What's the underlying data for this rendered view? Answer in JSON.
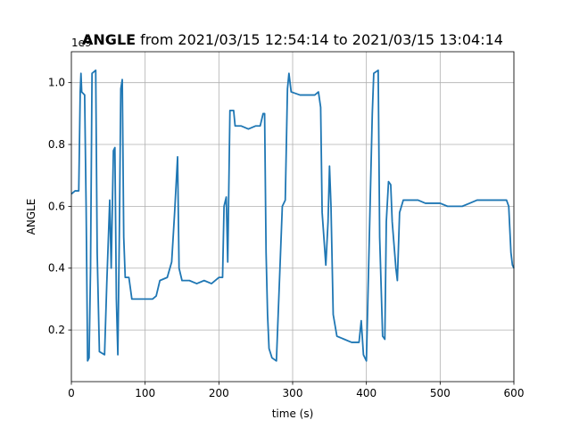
{
  "chart_data": {
    "type": "line",
    "title_bold": "ANGLE",
    "title": "from 2021/03/15 12:54:14 to 2021/03/15 13:04:14",
    "xlabel": "time (s)",
    "ylabel": "ANGLE",
    "offset_label": "1e9",
    "xlim": [
      0,
      600
    ],
    "ylim": [
      0.033,
      1.1
    ],
    "xticks": [
      0,
      100,
      200,
      300,
      400,
      500,
      600
    ],
    "yticks": [
      0.2,
      0.4,
      0.6,
      0.8,
      {
        "value": 1.0,
        "label": "1.0"
      }
    ],
    "grid": true,
    "x": [
      0,
      5,
      10,
      12,
      13,
      14,
      18,
      20,
      22,
      24,
      26,
      28,
      33,
      35,
      38,
      45,
      48,
      52,
      54,
      57,
      59,
      61,
      63,
      65,
      67,
      69,
      71,
      73,
      78,
      82,
      90,
      100,
      110,
      115,
      120,
      130,
      136,
      140,
      144,
      146,
      150,
      160,
      170,
      180,
      190,
      200,
      205,
      207,
      210,
      212,
      215,
      220,
      222,
      230,
      240,
      250,
      256,
      260,
      262,
      264,
      266,
      268,
      272,
      278,
      282,
      286,
      290,
      293,
      295,
      298,
      310,
      320,
      330,
      335,
      338,
      340,
      345,
      348,
      350,
      352,
      355,
      360,
      370,
      380,
      390,
      393,
      396,
      400,
      404,
      408,
      410,
      416,
      418,
      422,
      425,
      427,
      430,
      433,
      435,
      440,
      442,
      445,
      450,
      460,
      470,
      480,
      490,
      500,
      510,
      520,
      530,
      540,
      550,
      560,
      570,
      580,
      590,
      593,
      596,
      598,
      600
    ],
    "series": [
      {
        "name": "ANGLE",
        "color": "#1f77b4",
        "values": [
          0.64,
          0.65,
          0.65,
          0.97,
          1.03,
          0.97,
          0.96,
          0.6,
          0.1,
          0.11,
          0.4,
          1.03,
          1.04,
          0.45,
          0.13,
          0.12,
          0.35,
          0.62,
          0.4,
          0.78,
          0.79,
          0.3,
          0.12,
          0.5,
          0.98,
          1.01,
          0.5,
          0.37,
          0.37,
          0.3,
          0.3,
          0.3,
          0.3,
          0.31,
          0.36,
          0.37,
          0.42,
          0.58,
          0.76,
          0.4,
          0.36,
          0.36,
          0.35,
          0.36,
          0.35,
          0.37,
          0.37,
          0.6,
          0.63,
          0.42,
          0.91,
          0.91,
          0.86,
          0.86,
          0.85,
          0.86,
          0.86,
          0.9,
          0.9,
          0.45,
          0.25,
          0.14,
          0.11,
          0.1,
          0.35,
          0.6,
          0.62,
          0.98,
          1.03,
          0.97,
          0.96,
          0.96,
          0.96,
          0.97,
          0.92,
          0.58,
          0.41,
          0.55,
          0.73,
          0.6,
          0.25,
          0.18,
          0.17,
          0.16,
          0.16,
          0.23,
          0.12,
          0.1,
          0.5,
          0.9,
          1.03,
          1.04,
          0.5,
          0.18,
          0.17,
          0.55,
          0.68,
          0.67,
          0.55,
          0.4,
          0.36,
          0.58,
          0.62,
          0.62,
          0.62,
          0.61,
          0.61,
          0.61,
          0.6,
          0.6,
          0.6,
          0.61,
          0.62,
          0.62,
          0.62,
          0.62,
          0.62,
          0.6,
          0.45,
          0.41,
          0.4
        ]
      }
    ]
  }
}
